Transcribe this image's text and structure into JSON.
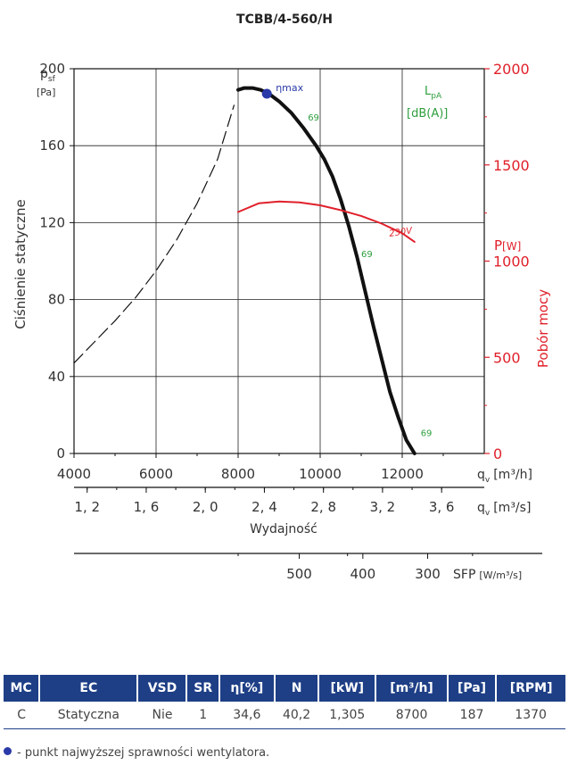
{
  "title": "TCBB/4-560/H",
  "chart_data": {
    "type": "line",
    "title": "TCBB/4-560/H",
    "y_axis": {
      "label": "Ciśnienie statyczne",
      "symbol": "p",
      "symbol_sub": "sf",
      "unit": "[Pa]",
      "range": [
        0,
        200
      ],
      "ticks": [
        0,
        40,
        80,
        120,
        160,
        200
      ],
      "grid": true
    },
    "y2_axis": {
      "label": "Pobór mocy",
      "symbol": "P",
      "unit": "[W]",
      "range": [
        0,
        2000
      ],
      "ticks": [
        0,
        500,
        1000,
        1500,
        2000
      ],
      "color": "#e0202a"
    },
    "x_axis": {
      "symbol": "q",
      "symbol_sub": "v",
      "unit": "[m³/h]",
      "range": [
        4000,
        14000
      ],
      "ticks": [
        4000,
        6000,
        8000,
        10000,
        12000
      ],
      "tick_labels": [
        "4000",
        "6000",
        "8000",
        "10000",
        "12000"
      ],
      "grid": true
    },
    "x2_axis": {
      "label": "Wydajność",
      "symbol": "q",
      "symbol_sub": "v",
      "unit": "[m³/s]",
      "ticks": [
        1.2,
        1.6,
        2.0,
        2.4,
        2.8,
        3.2,
        3.6
      ],
      "tick_labels": [
        "1, 2",
        "1, 6",
        "2, 0",
        "2, 4",
        "2, 8",
        "3, 2",
        "3, 6"
      ]
    },
    "x3_axis": {
      "label": "SFP",
      "unit": "[W/m³/s]",
      "ticks": [
        500,
        400,
        300
      ],
      "tick_labels": [
        "500",
        "400",
        "300"
      ],
      "positions_m3h": [
        9490,
        11040,
        12620
      ]
    },
    "lpa_label": {
      "symbol": "L",
      "sub": "pA",
      "unit": "[dB(A)]",
      "color": "#2e9e3e"
    },
    "series": [
      {
        "role": "pressure-curve",
        "unit": "Pa",
        "color": "#111111",
        "x": [
          8000,
          8150,
          8350,
          8550,
          8750,
          9000,
          9300,
          9600,
          9900,
          10100,
          10300,
          10500,
          10700,
          10900,
          11100,
          11300,
          11500,
          11700,
          11900,
          12100,
          12300
        ],
        "y": [
          189,
          190,
          190,
          189,
          187,
          183,
          177,
          169,
          160,
          153,
          144,
          132,
          118,
          102,
          84,
          66,
          49,
          32,
          19,
          7,
          0
        ]
      },
      {
        "role": "unstable-range",
        "style": "dashed",
        "unit": "Pa",
        "color": "#111111",
        "x": [
          4000,
          4500,
          5000,
          5500,
          6000,
          6500,
          7000,
          7500,
          7900
        ],
        "y": [
          47,
          58,
          69,
          81,
          95,
          111,
          130,
          153,
          181
        ]
      },
      {
        "name": "230V",
        "role": "power-curve",
        "unit": "W",
        "axis": "y2",
        "color": "#e0202a",
        "x": [
          8000,
          8500,
          9000,
          9500,
          10000,
          10500,
          11000,
          11500,
          12000,
          12300
        ],
        "y": [
          1255,
          1300,
          1310,
          1305,
          1290,
          1265,
          1235,
          1195,
          1145,
          1100
        ]
      }
    ],
    "eta_max_point": {
      "x": 8700,
      "y": 187,
      "label": "ηmax",
      "color": "#2a3aa8"
    },
    "lpa_annotations": [
      {
        "text": "69",
        "x": 9700,
        "y": 173
      },
      {
        "text": "69",
        "x": 11000,
        "y": 102
      },
      {
        "text": "69",
        "x": 12450,
        "y": 9
      }
    ]
  },
  "table": {
    "headers": [
      "MC",
      "EC",
      "VSD",
      "SR",
      "η[%]",
      "N",
      "[kW]",
      "[m³/h]",
      "[Pa]",
      "[RPM]"
    ],
    "row": [
      "C",
      "Statyczna",
      "Nie",
      "1",
      "34,6",
      "40,2",
      "1,305",
      "8700",
      "187",
      "1370"
    ]
  },
  "footnote": "- punkt najwyższej sprawności wentylatora."
}
